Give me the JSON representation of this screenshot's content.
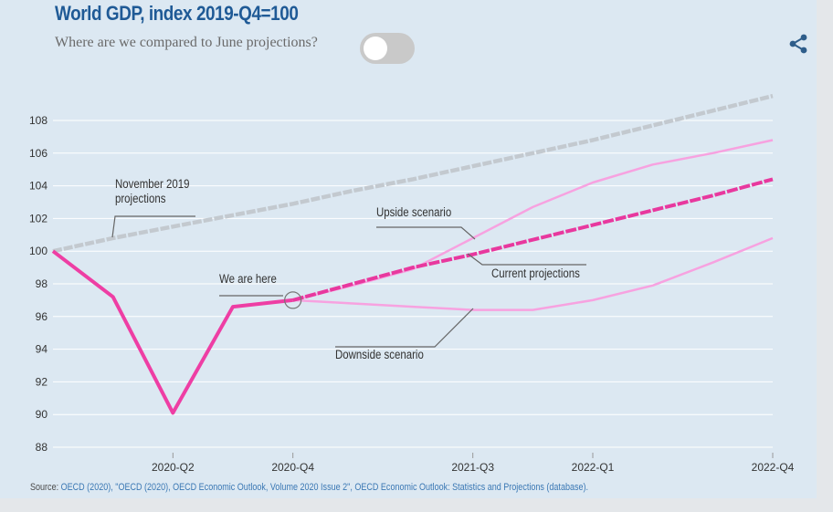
{
  "header": {
    "title": "World GDP, index 2019-Q4=100",
    "question": "Where are we compared to June projections?",
    "toggle_on": false
  },
  "icons": {
    "share": "share-icon"
  },
  "source": {
    "label": "Source:",
    "text": "OECD (2020), \"OECD (2020), OECD Economic Outlook, Volume 2020 Issue 2\", OECD Economic Outlook: Statistics and Projections (database)."
  },
  "chart_data": {
    "type": "line",
    "title": "World GDP, index 2019-Q4=100",
    "xlabel": "",
    "ylabel": "",
    "x": [
      "2019-Q4",
      "2020-Q1",
      "2020-Q2",
      "2020-Q3",
      "2020-Q4",
      "2021-Q1",
      "2021-Q2",
      "2021-Q3",
      "2021-Q4",
      "2022-Q1",
      "2022-Q2",
      "2022-Q3",
      "2022-Q4"
    ],
    "x_tick_labels": [
      "2020-Q2",
      "2020-Q4",
      "2021-Q3",
      "2022-Q1",
      "2022-Q4"
    ],
    "ylim": [
      88,
      109
    ],
    "y_ticks": [
      88,
      90,
      92,
      94,
      96,
      98,
      100,
      102,
      104,
      106,
      108
    ],
    "grid": true,
    "colors": {
      "november": "#c3c9cf",
      "actual": "#ee3ea4",
      "current": "#e8389e",
      "scenario": "#f7a2e0"
    },
    "series": [
      {
        "key": "november",
        "values": [
          100.0,
          100.8,
          101.5,
          102.2,
          102.9,
          103.7,
          104.4,
          105.2,
          106.0,
          106.8,
          107.7,
          108.6,
          109.5
        ]
      },
      {
        "key": "actual",
        "values": [
          100.0,
          97.2,
          90.1,
          96.6,
          97.0,
          null,
          null,
          null,
          null,
          null,
          null,
          null,
          null
        ]
      },
      {
        "key": "current",
        "values": [
          null,
          null,
          null,
          null,
          97.0,
          98.0,
          99.0,
          99.8,
          100.7,
          101.6,
          102.5,
          103.4,
          104.4
        ]
      },
      {
        "key": "upside",
        "values": [
          null,
          null,
          null,
          null,
          97.0,
          97.9,
          98.9,
          100.8,
          102.7,
          104.2,
          105.3,
          106.0,
          106.8
        ]
      },
      {
        "key": "downside",
        "values": [
          null,
          null,
          null,
          null,
          97.0,
          96.8,
          96.6,
          96.4,
          96.4,
          97.0,
          97.9,
          99.3,
          100.8
        ]
      }
    ],
    "annotations": [
      {
        "key": "november",
        "lines": [
          "November 2019",
          "projections"
        ],
        "anchor": [
          "2020-Q1",
          100.8
        ]
      },
      {
        "key": "upside",
        "lines": [
          "Upside scenario"
        ],
        "anchor": [
          "2021-Q3",
          100.8
        ]
      },
      {
        "key": "current",
        "lines": [
          "Current projections"
        ],
        "anchor": [
          "2021-Q2",
          99.4
        ]
      },
      {
        "key": "here",
        "lines": [
          "We are here"
        ],
        "anchor": [
          "2020-Q4",
          97.0
        ]
      },
      {
        "key": "downside",
        "lines": [
          "Downside scenario"
        ],
        "anchor": [
          "2021-Q3",
          96.4
        ]
      }
    ]
  }
}
